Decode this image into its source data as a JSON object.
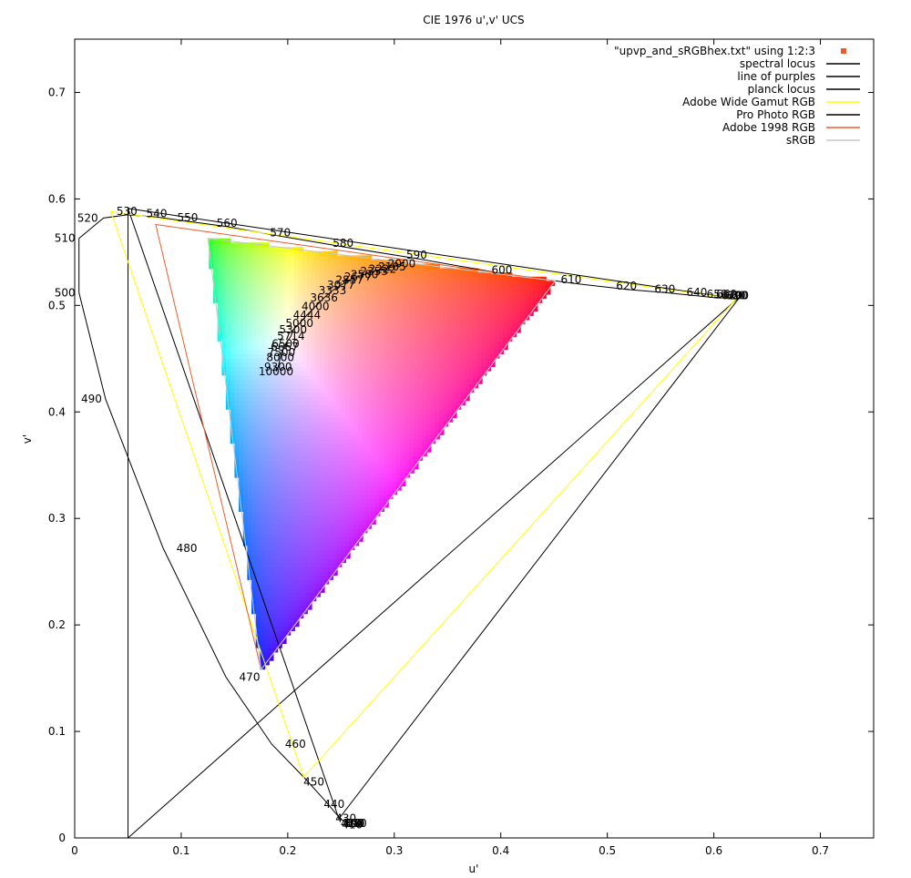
{
  "chart_data": {
    "type": "scatter",
    "title": "CIE 1976 u',v' UCS",
    "xlabel": "u'",
    "ylabel": "v'",
    "xlim": [
      0,
      0.75
    ],
    "ylim": [
      0,
      0.75
    ],
    "x_ticks": [
      "0",
      "0.1",
      "0.2",
      "0.3",
      "0.4",
      "0.5",
      "0.6",
      "0.7"
    ],
    "y_ticks": [
      "0",
      "0.1",
      "0.2",
      "0.3",
      "0.4",
      "0.5",
      "0.6",
      "0.7"
    ],
    "grid": false,
    "legend_position": "top-right",
    "legend": [
      {
        "label": "\"upvp_and_sRGBhex.txt\" using 1:2:3",
        "color": "#f05a28",
        "kind": "point"
      },
      {
        "label": "spectral locus",
        "color": "#000000",
        "kind": "line"
      },
      {
        "label": "line of purples",
        "color": "#000000",
        "kind": "line"
      },
      {
        "label": "planck locus",
        "color": "#000000",
        "kind": "line"
      },
      {
        "label": "Adobe Wide Gamut RGB",
        "color": "#ffff00",
        "kind": "line"
      },
      {
        "label": "Pro Photo RGB",
        "color": "#000000",
        "kind": "line"
      },
      {
        "label": "Adobe 1998 RGB",
        "color": "#f05a28",
        "kind": "line"
      },
      {
        "label": "sRGB",
        "color": "#c8c8c8",
        "kind": "line"
      }
    ],
    "spectral_locus": [
      {
        "nm": "380",
        "u": 0.256,
        "v": 0.017
      },
      {
        "nm": "390",
        "u": 0.254,
        "v": 0.017
      },
      {
        "nm": "400",
        "u": 0.253,
        "v": 0.017
      },
      {
        "nm": "410",
        "u": 0.252,
        "v": 0.016
      },
      {
        "nm": "420",
        "u": 0.251,
        "v": 0.017
      },
      {
        "nm": "430",
        "u": 0.246,
        "v": 0.022
      },
      {
        "nm": "440",
        "u": 0.235,
        "v": 0.035
      },
      {
        "nm": "450",
        "u": 0.216,
        "v": 0.056
      },
      {
        "nm": "460",
        "u": 0.185,
        "v": 0.088
      },
      {
        "nm": "470",
        "u": 0.142,
        "v": 0.151
      },
      {
        "nm": "480",
        "u": 0.083,
        "v": 0.272
      },
      {
        "nm": "490",
        "u": 0.029,
        "v": 0.412
      },
      {
        "nm": "500",
        "u": 0.004,
        "v": 0.512
      },
      {
        "nm": "510",
        "u": 0.004,
        "v": 0.563
      },
      {
        "nm": "520",
        "u": 0.027,
        "v": 0.582
      },
      {
        "nm": "530",
        "u": 0.049,
        "v": 0.585
      },
      {
        "nm": "540",
        "u": 0.077,
        "v": 0.583
      },
      {
        "nm": "550",
        "u": 0.106,
        "v": 0.579
      },
      {
        "nm": "560",
        "u": 0.143,
        "v": 0.574
      },
      {
        "nm": "570",
        "u": 0.193,
        "v": 0.565
      },
      {
        "nm": "580",
        "u": 0.252,
        "v": 0.555
      },
      {
        "nm": "590",
        "u": 0.321,
        "v": 0.544
      },
      {
        "nm": "600",
        "u": 0.401,
        "v": 0.53
      },
      {
        "nm": "610",
        "u": 0.466,
        "v": 0.521
      },
      {
        "nm": "620",
        "u": 0.518,
        "v": 0.515
      },
      {
        "nm": "630",
        "u": 0.554,
        "v": 0.512
      },
      {
        "nm": "640",
        "u": 0.584,
        "v": 0.509
      },
      {
        "nm": "650",
        "u": 0.603,
        "v": 0.507
      },
      {
        "nm": "660",
        "u": 0.612,
        "v": 0.507
      },
      {
        "nm": "670",
        "u": 0.617,
        "v": 0.506
      },
      {
        "nm": "680",
        "u": 0.62,
        "v": 0.506
      },
      {
        "nm": "690",
        "u": 0.622,
        "v": 0.506
      },
      {
        "nm": "700",
        "u": 0.623,
        "v": 0.506
      }
    ],
    "planck_locus": [
      {
        "K": "2000",
        "u": 0.307,
        "v": 0.539
      },
      {
        "K": "2105",
        "u": 0.298,
        "v": 0.536
      },
      {
        "K": "2222",
        "u": 0.289,
        "v": 0.534
      },
      {
        "K": "2353",
        "u": 0.281,
        "v": 0.532
      },
      {
        "K": "2500",
        "u": 0.272,
        "v": 0.529
      },
      {
        "K": "2677",
        "u": 0.266,
        "v": 0.527
      },
      {
        "K": "2857",
        "u": 0.258,
        "v": 0.524
      },
      {
        "K": "3077",
        "u": 0.25,
        "v": 0.519
      },
      {
        "K": "3333",
        "u": 0.242,
        "v": 0.514
      },
      {
        "K": "3636",
        "u": 0.234,
        "v": 0.507
      },
      {
        "K": "4000",
        "u": 0.226,
        "v": 0.499
      },
      {
        "K": "4444",
        "u": 0.218,
        "v": 0.491
      },
      {
        "K": "5000",
        "u": 0.211,
        "v": 0.483
      },
      {
        "K": "5300",
        "u": 0.205,
        "v": 0.477
      },
      {
        "K": "5714",
        "u": 0.203,
        "v": 0.471
      },
      {
        "K": "6500",
        "u": 0.198,
        "v": 0.464
      },
      {
        "K": "6667",
        "u": 0.197,
        "v": 0.461
      },
      {
        "K": "7500",
        "u": 0.194,
        "v": 0.456
      },
      {
        "K": "8000",
        "u": 0.193,
        "v": 0.451
      },
      {
        "K": "9300",
        "u": 0.191,
        "v": 0.442
      },
      {
        "K": "10000",
        "u": 0.189,
        "v": 0.438
      }
    ],
    "line_of_purples": [
      [
        0.05,
        0.0
      ],
      [
        0.05,
        0.592
      ]
    ],
    "gamuts": {
      "adobe_wide_gamut": [
        [
          0.621,
          0.506
        ],
        [
          0.034,
          0.588
        ],
        [
          0.215,
          0.057
        ]
      ],
      "pro_photo": [
        [
          0.623,
          0.506
        ],
        [
          0.05,
          0.591
        ],
        [
          0.248,
          0.018
        ]
      ],
      "adobe_1998": [
        [
          0.451,
          0.523
        ],
        [
          0.076,
          0.576
        ],
        [
          0.175,
          0.158
        ]
      ],
      "srgb": [
        [
          0.451,
          0.523
        ],
        [
          0.125,
          0.563
        ],
        [
          0.175,
          0.158
        ]
      ]
    },
    "srgb_fill": {
      "red": [
        0.451,
        0.523
      ],
      "green": [
        0.125,
        0.563
      ],
      "blue": [
        0.175,
        0.158
      ],
      "white": [
        0.198,
        0.468
      ]
    }
  }
}
